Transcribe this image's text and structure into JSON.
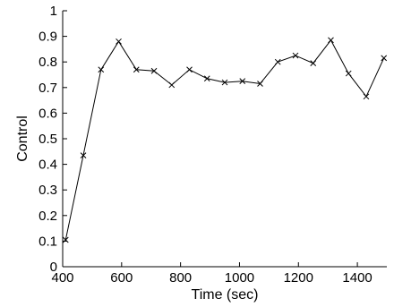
{
  "chart_data": {
    "type": "line",
    "xlabel": "Time (sec)",
    "ylabel": "Control",
    "xlim": [
      400,
      1500
    ],
    "ylim": [
      0,
      1
    ],
    "x_ticks": [
      400,
      600,
      800,
      1000,
      1200,
      1400
    ],
    "x_tick_labels": [
      "400",
      "600",
      "800",
      "1000",
      "1200",
      "1400"
    ],
    "y_ticks": [
      0,
      0.1,
      0.2,
      0.3,
      0.4,
      0.5,
      0.6,
      0.7,
      0.8,
      0.9,
      1
    ],
    "y_tick_labels": [
      "0",
      "0.1",
      "0.2",
      "0.3",
      "0.4",
      "0.5",
      "0.6",
      "0.7",
      "0.8",
      "0.9",
      "1"
    ],
    "grid": false,
    "marker": "x",
    "line_color": "#000000",
    "series": [
      {
        "x": [
          410,
          470,
          530,
          590,
          650,
          710,
          770,
          830,
          890,
          950,
          1010,
          1070,
          1130,
          1190,
          1250,
          1310,
          1370,
          1430,
          1490
        ],
        "y": [
          0.105,
          0.435,
          0.77,
          0.88,
          0.77,
          0.765,
          0.71,
          0.77,
          0.735,
          0.72,
          0.725,
          0.715,
          0.8,
          0.825,
          0.795,
          0.885,
          0.755,
          0.665,
          0.815
        ]
      }
    ]
  }
}
